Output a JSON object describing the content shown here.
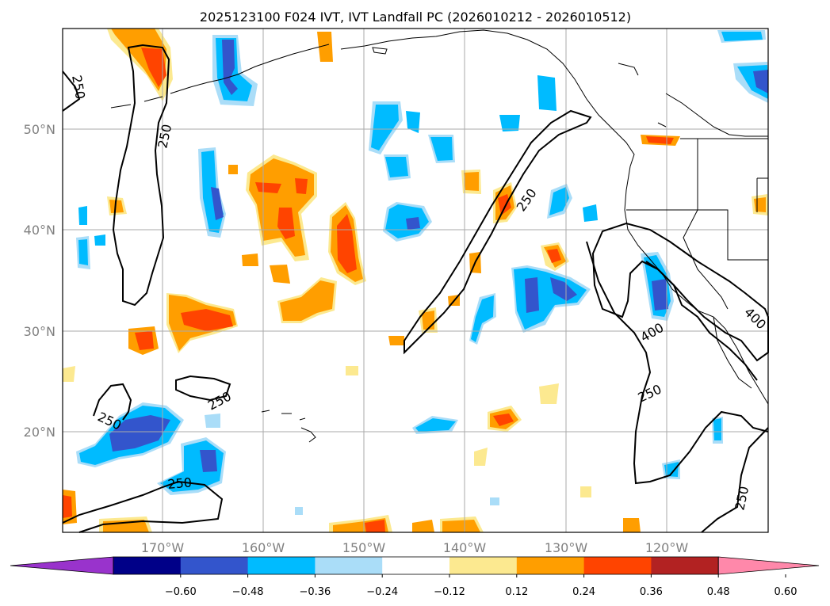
{
  "title": "2025123100 F024 IVT, IVT Landfall PC (2026010212 - 2026010512)",
  "lat_labels": [
    "50°N",
    "40°N",
    "30°N",
    "20°N"
  ],
  "lon_labels": [
    "170°W",
    "160°W",
    "150°W",
    "140°W",
    "130°W",
    "120°W"
  ],
  "colorbar": {
    "colors": [
      "#9933cc",
      "#000088",
      "#3355cc",
      "#00bbff",
      "#aaddf8",
      "#ffffff",
      "#fce990",
      "#ff9e00",
      "#ff4400",
      "#b22222",
      "#ff88aa"
    ],
    "labels": [
      "−0.60",
      "−0.48",
      "−0.36",
      "−0.24",
      "−0.12",
      "0.12",
      "0.24",
      "0.36",
      "0.48",
      "0.60"
    ]
  },
  "contour_labels": [
    "250",
    "250",
    "250",
    "250",
    "250",
    "250",
    "400",
    "400",
    "250",
    "250"
  ],
  "contour_levels": [
    250,
    400
  ]
}
